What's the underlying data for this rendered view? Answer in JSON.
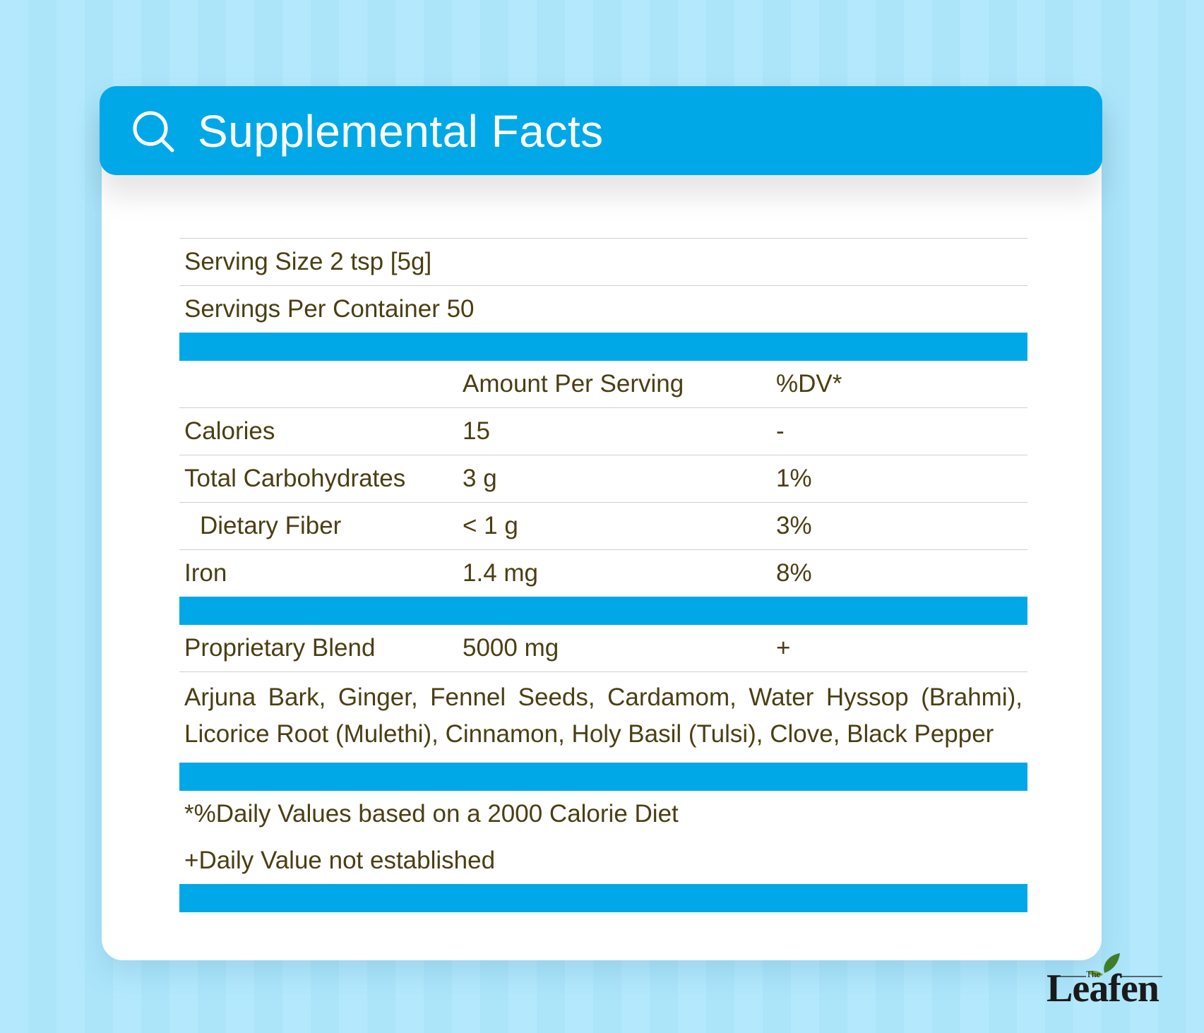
{
  "header": {
    "title": "Supplemental Facts",
    "icon": "search-icon"
  },
  "serving": {
    "size": "Serving Size 2 tsp [5g]",
    "per_container": "Servings Per Container 50"
  },
  "columns": {
    "amount": "Amount Per Serving",
    "dv": "%DV*"
  },
  "nutrients": [
    {
      "name": "Calories",
      "amount": "15",
      "dv": "-"
    },
    {
      "name": "Total Carbohydrates",
      "amount": "3 g",
      "dv": "1%"
    },
    {
      "name": "Dietary Fiber",
      "amount": "< 1 g",
      "dv": "3%"
    },
    {
      "name": "Iron",
      "amount": "1.4 mg",
      "dv": "8%"
    }
  ],
  "blend": {
    "name": "Proprietary Blend",
    "amount": "5000 mg",
    "dv": "+"
  },
  "ingredients": "Arjuna Bark, Ginger, Fennel Seeds, Cardamom, Water Hyssop (Brahmi), Licorice Root (Mulethi), Cinnamon, Holy Basil (Tulsi), Clove, Black Pepper",
  "footnotes": {
    "dv_basis": "*%Daily Values based on a 2000 Calorie Diet",
    "not_established": "+Daily Value not established"
  },
  "brand": {
    "the": "The",
    "name": "Leafen"
  },
  "colors": {
    "accent": "#01a8e7",
    "text": "#4a3f13",
    "background": "#b1e8fc"
  }
}
